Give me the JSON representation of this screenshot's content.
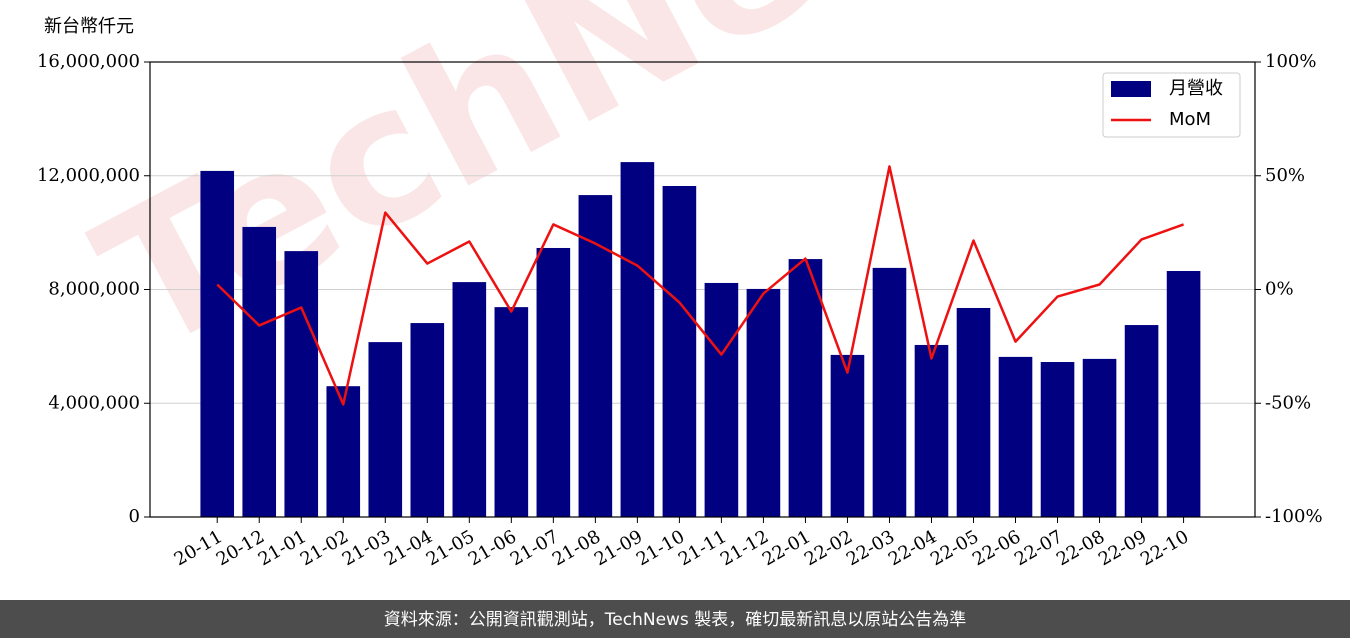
{
  "chart_data": {
    "type": "bar",
    "y_label": "新台幣仟元",
    "watermark": "TechNews",
    "footer": "資料來源：公開資訊觀測站，TechNews 製表，確切最新訊息以原站公告為準",
    "categories": [
      "20-11",
      "20-12",
      "21-01",
      "21-02",
      "21-03",
      "21-04",
      "21-05",
      "21-06",
      "21-07",
      "21-08",
      "21-09",
      "21-10",
      "21-11",
      "21-12",
      "22-01",
      "22-02",
      "22-03",
      "22-04",
      "22-05",
      "22-06",
      "22-07",
      "22-08",
      "22-09",
      "22-10"
    ],
    "series": [
      {
        "name": "月營收",
        "type": "bar",
        "color": "#000080",
        "values": [
          12170000,
          10200000,
          9350000,
          4600000,
          6150000,
          6820000,
          8260000,
          7380000,
          9460000,
          11320000,
          12480000,
          11640000,
          8230000,
          8020000,
          9070000,
          5700000,
          8760000,
          6050000,
          7350000,
          5630000,
          5450000,
          5560000,
          6750000,
          8650000
        ]
      },
      {
        "name": "MoM",
        "type": "line",
        "color": "#ee1111",
        "axis": "y2",
        "values": [
          2.2,
          -15.8,
          -7.9,
          -50.5,
          33.8,
          11.4,
          21.1,
          -9.7,
          28.6,
          20.2,
          10.5,
          -5.7,
          -28.6,
          -1.8,
          13.6,
          -36.5,
          54.1,
          -30.3,
          21.5,
          -22.9,
          -3.1,
          2.2,
          22,
          28.6
        ]
      }
    ],
    "ylim": [
      0,
      16000000
    ],
    "yticks": [
      0,
      {
        "value": 4000000,
        "label": "4,000,000"
      },
      {
        "value": 8000000,
        "label": "8,000,000"
      },
      {
        "value": 12000000,
        "label": "12,000,000"
      },
      {
        "value": 16000000,
        "label": "16,000,000"
      }
    ],
    "y2lim": [
      -100,
      100
    ],
    "y2ticks": [
      {
        "value": -100,
        "label": "-100%"
      },
      {
        "value": -50,
        "label": "-50%"
      },
      {
        "value": 0,
        "label": "0%"
      },
      {
        "value": 50,
        "label": "50%"
      },
      {
        "value": 100,
        "label": "100%"
      }
    ],
    "grid": true,
    "legend": "upper right"
  }
}
